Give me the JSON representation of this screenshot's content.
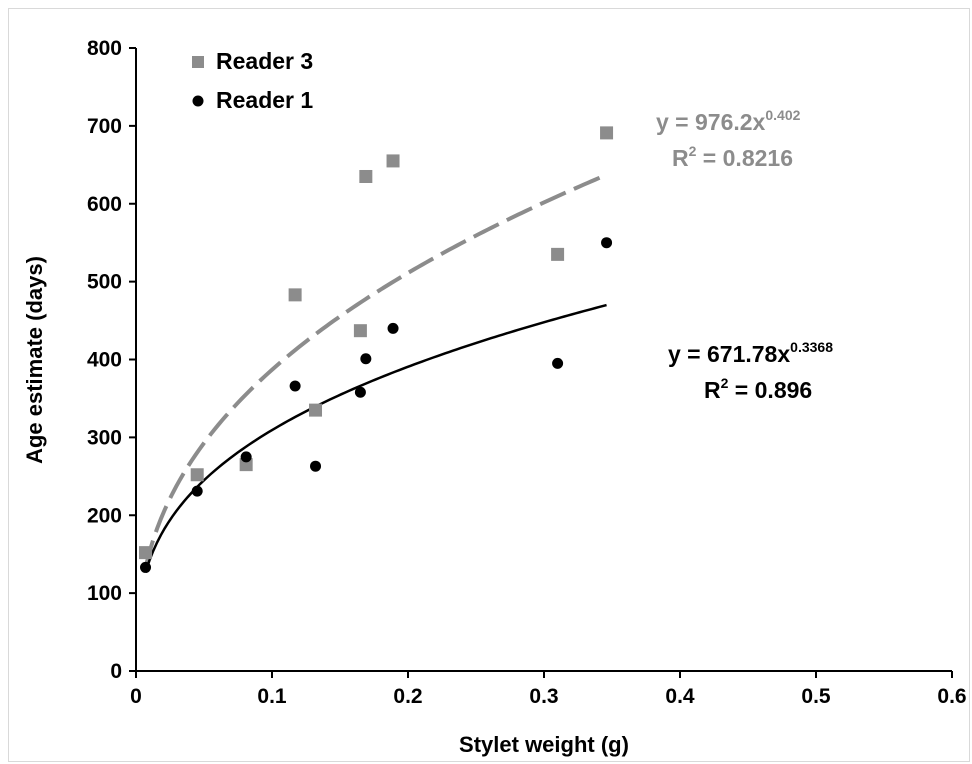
{
  "chart_data": {
    "type": "scatter",
    "xlabel": "Stylet weight (g)",
    "ylabel": "Age estimate (days)",
    "xlim": [
      0,
      0.6
    ],
    "ylim": [
      0,
      800
    ],
    "xticks": [
      0,
      0.1,
      0.2,
      0.3,
      0.4,
      0.5,
      0.6
    ],
    "yticks": [
      0,
      100,
      200,
      300,
      400,
      500,
      600,
      700,
      800
    ],
    "xtick_labels": [
      "0",
      "0.1",
      "0.2",
      "0.3",
      "0.4",
      "0.5",
      "0.6"
    ],
    "ytick_labels": [
      "0",
      "100",
      "200",
      "300",
      "400",
      "500",
      "600",
      "700",
      "800"
    ],
    "grid": false,
    "legend_position": "top-left",
    "series": [
      {
        "name": "Reader 3",
        "marker": "square",
        "color": "#8c8c8c",
        "points": [
          [
            0.007,
            152
          ],
          [
            0.045,
            252
          ],
          [
            0.081,
            265
          ],
          [
            0.117,
            483
          ],
          [
            0.132,
            335
          ],
          [
            0.165,
            437
          ],
          [
            0.169,
            635
          ],
          [
            0.189,
            655
          ],
          [
            0.31,
            535
          ],
          [
            0.346,
            691
          ]
        ],
        "trendline": {
          "type": "power",
          "a": 976.2,
          "b": 0.402,
          "x_range": [
            0.007,
            0.346
          ],
          "style": "dashed",
          "color": "#8c8c8c",
          "equation": {
            "prefix": "y = 976.2x",
            "exponent": "0.402",
            "r2_prefix": "R",
            "r2_sup": "2",
            "r2_value": " = 0.8216"
          }
        }
      },
      {
        "name": "Reader 1",
        "marker": "circle",
        "color": "#000000",
        "points": [
          [
            0.007,
            133
          ],
          [
            0.045,
            231
          ],
          [
            0.081,
            275
          ],
          [
            0.117,
            366
          ],
          [
            0.132,
            263
          ],
          [
            0.165,
            358
          ],
          [
            0.169,
            401
          ],
          [
            0.189,
            440
          ],
          [
            0.31,
            395
          ],
          [
            0.346,
            550
          ]
        ],
        "trendline": {
          "type": "power",
          "a": 671.78,
          "b": 0.3368,
          "x_range": [
            0.007,
            0.346
          ],
          "style": "solid",
          "color": "#000000",
          "equation": {
            "prefix": "y = 671.78x",
            "exponent": "0.3368",
            "r2_prefix": "R",
            "r2_sup": "2",
            "r2_value": " = 0.896"
          }
        }
      }
    ]
  }
}
